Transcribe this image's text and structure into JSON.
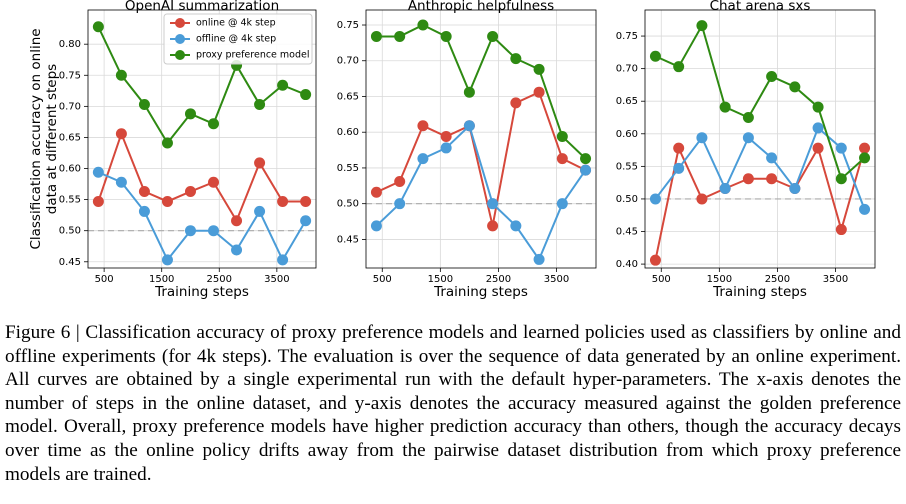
{
  "chart_data": [
    {
      "type": "line",
      "title": "OpenAI summarization",
      "xlabel": "Training steps",
      "ylabel": [
        "Classification accuracy on online",
        "data at different steps"
      ],
      "x": [
        400,
        800,
        1200,
        1600,
        2000,
        2400,
        2800,
        3200,
        3600,
        4000
      ],
      "xlim": [
        220,
        4180
      ],
      "xticks": [
        500,
        1500,
        2500,
        3500
      ],
      "ylim": [
        0.44,
        0.855
      ],
      "yticks": [
        0.45,
        {
          "value": 0.5,
          "label": "0.50"
        },
        0.55,
        {
          "value": 0.6,
          "label": "0.60"
        },
        0.65,
        {
          "value": 0.7,
          "label": "0.70"
        },
        0.75,
        {
          "value": 0.8,
          "label": "0.80"
        }
      ],
      "grid": true,
      "hline": 0.5,
      "legend": "upper center",
      "series": [
        {
          "name": "online @ 4k step",
          "color": "#d6483b",
          "values": [
            0.547,
            0.656,
            0.563,
            0.547,
            0.563,
            0.578,
            0.516,
            0.609,
            0.547,
            0.547
          ]
        },
        {
          "name": "offline @ 4k step",
          "color": "#4a9cd8",
          "values": [
            0.594,
            0.578,
            0.531,
            0.453,
            0.5,
            0.5,
            0.469,
            0.531,
            0.453,
            0.516
          ]
        },
        {
          "name": "proxy preference model",
          "color": "#2e8a12",
          "values": [
            0.828,
            0.75,
            0.703,
            0.641,
            0.688,
            0.672,
            0.766,
            0.703,
            0.734,
            0.719
          ]
        }
      ]
    },
    {
      "type": "line",
      "title": "Anthropic helpfulness",
      "xlabel": "Training steps",
      "x": [
        400,
        800,
        1200,
        1600,
        2000,
        2400,
        2800,
        3200,
        3600,
        4000
      ],
      "xlim": [
        220,
        4180
      ],
      "xticks": [
        500,
        1500,
        2500,
        3500
      ],
      "ylim": [
        0.41,
        0.771
      ],
      "yticks": [
        0.45,
        {
          "value": 0.5,
          "label": "0.50"
        },
        0.55,
        {
          "value": 0.6,
          "label": "0.60"
        },
        0.65,
        {
          "value": 0.7,
          "label": "0.70"
        },
        0.75
      ],
      "grid": true,
      "hline": 0.5,
      "series": [
        {
          "color": "#d6483b",
          "values": [
            0.516,
            0.531,
            0.609,
            0.594,
            0.609,
            0.469,
            0.641,
            0.656,
            0.563,
            0.547
          ]
        },
        {
          "color": "#4a9cd8",
          "values": [
            0.469,
            0.5,
            0.563,
            0.578,
            0.609,
            0.5,
            0.469,
            0.422,
            0.5,
            0.547
          ]
        },
        {
          "color": "#2e8a12",
          "values": [
            0.734,
            0.734,
            0.75,
            0.734,
            0.656,
            0.734,
            0.703,
            0.688,
            0.594,
            0.563
          ]
        }
      ]
    },
    {
      "type": "line",
      "title": "Chat arena sxs",
      "xlabel": "Training steps",
      "x": [
        400,
        800,
        1200,
        1600,
        2000,
        2400,
        2800,
        3200,
        3600,
        4000
      ],
      "xlim": [
        220,
        4180
      ],
      "xticks": [
        500,
        1500,
        2500,
        3500
      ],
      "ylim": [
        0.394,
        0.79
      ],
      "yticks": [
        {
          "value": 0.4,
          "label": "0.40"
        },
        0.45,
        {
          "value": 0.5,
          "label": "0.50"
        },
        0.55,
        {
          "value": 0.6,
          "label": "0.60"
        },
        0.65,
        {
          "value": 0.7,
          "label": "0.70"
        },
        0.75
      ],
      "grid": true,
      "hline": 0.5,
      "series": [
        {
          "color": "#d6483b",
          "values": [
            0.406,
            0.578,
            0.5,
            0.516,
            0.531,
            0.531,
            0.516,
            0.578,
            0.453,
            0.578
          ]
        },
        {
          "color": "#4a9cd8",
          "values": [
            0.5,
            0.547,
            0.594,
            0.516,
            0.594,
            0.563,
            0.516,
            0.609,
            0.578,
            0.484
          ]
        },
        {
          "color": "#2e8a12",
          "values": [
            0.719,
            0.703,
            0.766,
            0.641,
            0.625,
            0.688,
            0.672,
            0.641,
            0.531,
            0.563
          ]
        }
      ]
    }
  ],
  "caption": "Figure 6 | Classification accuracy of proxy preference models and learned policies used as classifiers by online and offline experiments (for 4k steps). The evaluation is over the sequence of data generated by an online experiment. All curves are obtained by a single experimental run with the default hyper-parameters. The x-axis denotes the number of steps in the online dataset, and y-axis denotes the accuracy measured against the golden preference model. Overall, proxy preference models have higher prediction accuracy than others, though the accuracy decays over time as the online policy drifts away from the pairwise dataset distribution from which proxy preference models are trained."
}
